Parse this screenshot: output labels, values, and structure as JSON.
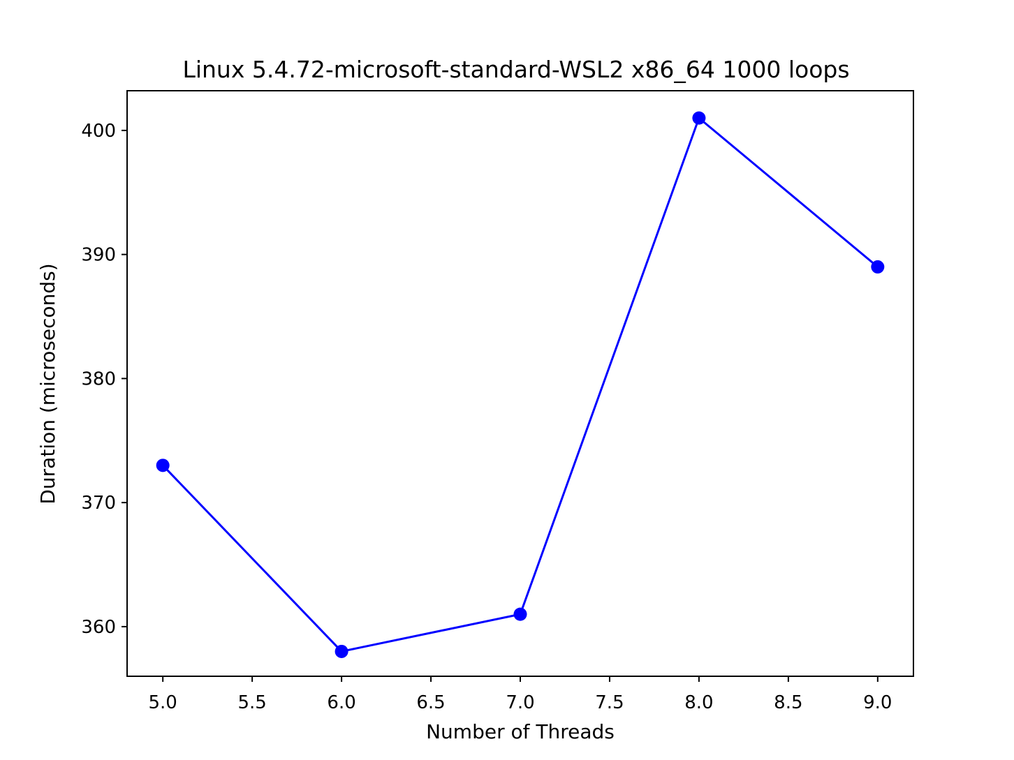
{
  "chart_data": {
    "type": "line",
    "title": "Linux 5.4.72-microsoft-standard-WSL2 x86_64 1000 loops",
    "xlabel": "Number of Threads",
    "ylabel": "Duration (microseconds)",
    "xlim": [
      4.8,
      9.2
    ],
    "ylim": [
      356,
      403.2
    ],
    "x_ticks": [
      5.0,
      5.5,
      6.0,
      6.5,
      7.0,
      7.5,
      8.0,
      8.5,
      9.0
    ],
    "x_tick_labels": [
      "5.0",
      "5.5",
      "6.0",
      "6.5",
      "7.0",
      "7.5",
      "8.0",
      "8.5",
      "9.0"
    ],
    "y_ticks": [
      360,
      370,
      380,
      390,
      400
    ],
    "y_tick_labels": [
      "360",
      "370",
      "380",
      "390",
      "400"
    ],
    "grid": false,
    "series": [
      {
        "color": "#0000ff",
        "marker": "circle",
        "points": [
          {
            "x": 5,
            "y": 373
          },
          {
            "x": 6,
            "y": 358
          },
          {
            "x": 7,
            "y": 361
          },
          {
            "x": 8,
            "y": 401
          },
          {
            "x": 9,
            "y": 389
          }
        ]
      }
    ]
  }
}
